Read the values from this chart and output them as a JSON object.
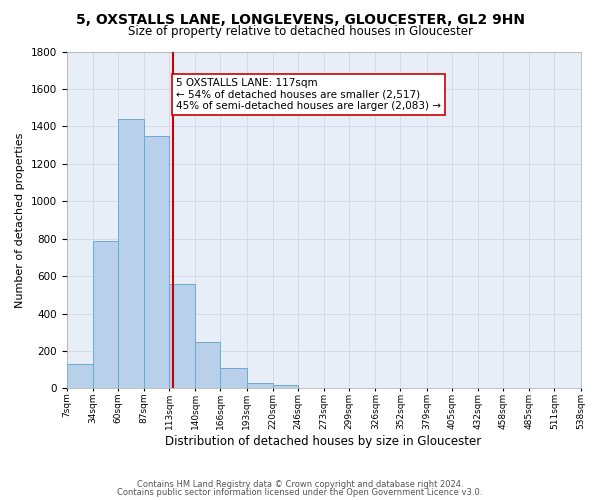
{
  "title": "5, OXSTALLS LANE, LONGLEVENS, GLOUCESTER, GL2 9HN",
  "subtitle": "Size of property relative to detached houses in Gloucester",
  "xlabel": "Distribution of detached houses by size in Gloucester",
  "ylabel": "Number of detached properties",
  "bar_edges": [
    7,
    34,
    60,
    87,
    113,
    140,
    166,
    193,
    220,
    246,
    273,
    299,
    326,
    352,
    379,
    405,
    432,
    458,
    485,
    511,
    538
  ],
  "bar_heights": [
    130,
    790,
    1440,
    1350,
    560,
    250,
    110,
    30,
    20,
    0,
    0,
    0,
    0,
    0,
    0,
    0,
    0,
    0,
    0,
    0
  ],
  "bar_facecolor": "#b8d0ea",
  "bar_edgecolor": "#6aaad4",
  "vline_x": 117,
  "vline_color": "#cc0000",
  "annotation_title": "5 OXSTALLS LANE: 117sqm",
  "annotation_line1": "← 54% of detached houses are smaller (2,517)",
  "annotation_line2": "45% of semi-detached houses are larger (2,083) →",
  "annotation_box_edgecolor": "#cc0000",
  "annotation_box_facecolor": "#ffffff",
  "ylim": [
    0,
    1800
  ],
  "yticks": [
    0,
    200,
    400,
    600,
    800,
    1000,
    1200,
    1400,
    1600,
    1800
  ],
  "tick_labels": [
    "7sqm",
    "34sqm",
    "60sqm",
    "87sqm",
    "113sqm",
    "140sqm",
    "166sqm",
    "193sqm",
    "220sqm",
    "246sqm",
    "273sqm",
    "299sqm",
    "326sqm",
    "352sqm",
    "379sqm",
    "405sqm",
    "432sqm",
    "458sqm",
    "485sqm",
    "511sqm",
    "538sqm"
  ],
  "footer1": "Contains HM Land Registry data © Crown copyright and database right 2024.",
  "footer2": "Contains public sector information licensed under the Open Government Licence v3.0.",
  "grid_color": "#d0d8e8",
  "background_color": "#e8eef8",
  "title_fontsize": 10,
  "subtitle_fontsize": 8.5
}
